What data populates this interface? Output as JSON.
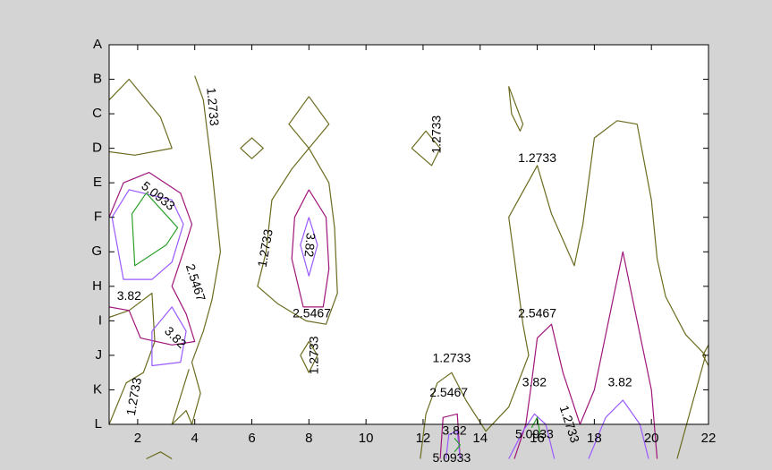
{
  "chart_data": {
    "type": "contour",
    "title": "",
    "xlabel": "",
    "ylabel": "",
    "xlim": [
      1,
      22
    ],
    "x_ticks": [
      2,
      4,
      6,
      8,
      10,
      12,
      14,
      16,
      18,
      20,
      22
    ],
    "y_categories": [
      "A",
      "B",
      "C",
      "D",
      "E",
      "F",
      "G",
      "H",
      "I",
      "J",
      "K",
      "L"
    ],
    "grid": false,
    "levels": [
      {
        "value": 1.2733,
        "color": "#6b6b1f"
      },
      {
        "value": 2.5467,
        "color": "#a0157a"
      },
      {
        "value": 3.82,
        "color": "#9b59ff"
      },
      {
        "value": 5.0933,
        "color": "#2ca02c"
      }
    ],
    "contours": [
      {
        "level": 0,
        "points": [
          [
            1,
            1.6
          ],
          [
            1.7,
            1.0
          ],
          [
            2.8,
            2.1
          ],
          [
            3.2,
            3.0
          ],
          [
            1.9,
            3.2
          ],
          [
            1,
            3.1
          ]
        ]
      },
      {
        "level": 0,
        "points": [
          [
            4.0,
            0.9
          ],
          [
            4.3,
            1.6
          ],
          [
            4.6,
            3.6
          ],
          [
            4.9,
            6.0
          ],
          [
            4.6,
            7.4
          ],
          [
            4.3,
            8.3
          ],
          [
            3.9,
            9.2
          ],
          [
            4.2,
            10.1
          ],
          [
            3.9,
            11.0
          ],
          [
            3.7,
            10.6
          ],
          [
            3.2,
            11.0
          ],
          [
            3.8,
            9.4
          ]
        ]
      },
      {
        "level": 0,
        "points": [
          [
            1,
            11.0
          ],
          [
            1.6,
            9.8
          ],
          [
            2.2,
            9.5
          ],
          [
            2.6,
            8.6
          ],
          [
            2.5,
            7.2
          ],
          [
            1.7,
            7.7
          ],
          [
            1,
            7.9
          ]
        ]
      },
      {
        "level": 0,
        "points": [
          [
            2.3,
            12
          ],
          [
            2.8,
            11.8
          ],
          [
            3.2,
            12
          ]
        ]
      },
      {
        "level": 0,
        "points": [
          [
            5.6,
            3.0
          ],
          [
            6.0,
            2.7
          ],
          [
            6.4,
            3.0
          ],
          [
            6.0,
            3.3
          ],
          [
            5.6,
            3.0
          ]
        ]
      },
      {
        "level": 0,
        "points": [
          [
            8,
            1.5
          ],
          [
            8.7,
            2.3
          ],
          [
            8,
            3.0
          ],
          [
            7.3,
            2.3
          ],
          [
            8,
            1.5
          ]
        ]
      },
      {
        "level": 0,
        "points": [
          [
            8,
            3.0
          ],
          [
            8.7,
            4.0
          ],
          [
            8.9,
            5.3
          ],
          [
            9.0,
            7.2
          ],
          [
            8.6,
            8.1
          ],
          [
            7.9,
            8.0
          ],
          [
            6.9,
            7.5
          ],
          [
            6.2,
            7.0
          ],
          [
            6.5,
            6.0
          ],
          [
            6.7,
            4.5
          ],
          [
            7.4,
            3.6
          ],
          [
            8,
            3.0
          ]
        ]
      },
      {
        "level": 0,
        "points": [
          [
            7.7,
            9.0
          ],
          [
            8,
            8.6
          ],
          [
            8.3,
            9.0
          ],
          [
            8,
            9.5
          ],
          [
            7.7,
            9.0
          ]
        ]
      },
      {
        "level": 0,
        "points": [
          [
            11.6,
            3.0
          ],
          [
            12.1,
            2.5
          ],
          [
            12.6,
            3.0
          ],
          [
            12.3,
            3.5
          ],
          [
            11.6,
            3.0
          ]
        ]
      },
      {
        "level": 0,
        "points": [
          [
            15.0,
            1.2
          ],
          [
            15.5,
            2.3
          ],
          [
            15.4,
            2.5
          ],
          [
            15.1,
            2.0
          ],
          [
            15.0,
            1.2
          ]
        ]
      },
      {
        "level": 0,
        "points": [
          [
            11.9,
            12
          ],
          [
            12.1,
            10.7
          ],
          [
            12.5,
            9.8
          ],
          [
            13.0,
            9.5
          ],
          [
            13.5,
            10.3
          ],
          [
            14.2,
            11.2
          ],
          [
            15.0,
            10.5
          ],
          [
            15.7,
            9.0
          ],
          [
            15.5,
            8.1
          ],
          [
            15.2,
            6.2
          ],
          [
            15.0,
            5.0
          ],
          [
            16.0,
            3.5
          ],
          [
            16.5,
            4.9
          ],
          [
            17.3,
            6.4
          ],
          [
            17.6,
            5.2
          ],
          [
            18.0,
            2.7
          ],
          [
            18.8,
            2.2
          ],
          [
            19.5,
            2.3
          ],
          [
            20.0,
            4.5
          ],
          [
            20.2,
            6.2
          ],
          [
            20.5,
            7.3
          ],
          [
            21.2,
            8.4
          ],
          [
            21.9,
            9.0
          ],
          [
            20.9,
            12
          ]
        ]
      },
      {
        "level": 0,
        "points": [
          [
            22,
            8.7
          ],
          [
            21.8,
            9.0
          ],
          [
            22,
            9.3
          ]
        ]
      },
      {
        "level": 1,
        "points": [
          [
            1,
            5.0
          ],
          [
            1.5,
            4.0
          ],
          [
            2.4,
            3.7
          ],
          [
            3.5,
            4.3
          ],
          [
            3.9,
            5.2
          ],
          [
            3.6,
            6.0
          ],
          [
            3.2,
            7.0
          ],
          [
            3.7,
            7.8
          ],
          [
            4.0,
            8.6
          ],
          [
            3.2,
            8.7
          ],
          [
            2.1,
            8.5
          ],
          [
            1.7,
            7.7
          ],
          [
            1,
            7.6
          ]
        ]
      },
      {
        "level": 1,
        "points": [
          [
            8,
            4.2
          ],
          [
            8.6,
            5.0
          ],
          [
            8.7,
            6.5
          ],
          [
            8.5,
            7.6
          ],
          [
            7.8,
            7.6
          ],
          [
            7.4,
            6.2
          ],
          [
            7.5,
            5.0
          ],
          [
            8,
            4.2
          ]
        ]
      },
      {
        "level": 1,
        "points": [
          [
            12.6,
            12
          ],
          [
            12.7,
            10.8
          ],
          [
            13.2,
            10.7
          ],
          [
            13.3,
            12
          ]
        ]
      },
      {
        "level": 1,
        "points": [
          [
            15.2,
            12
          ],
          [
            15.6,
            11.0
          ],
          [
            15.8,
            9.8
          ],
          [
            16.0,
            8.5
          ],
          [
            16.5,
            8.1
          ],
          [
            16.9,
            9.5
          ],
          [
            17.5,
            11.0
          ],
          [
            18.0,
            10.0
          ],
          [
            18.5,
            8.0
          ],
          [
            19.0,
            6.0
          ],
          [
            19.5,
            8.0
          ],
          [
            20.0,
            10.0
          ],
          [
            20.2,
            12
          ]
        ]
      },
      {
        "level": 2,
        "points": [
          [
            1.1,
            5.0
          ],
          [
            1.7,
            4.2
          ],
          [
            3.2,
            4.5
          ],
          [
            3.6,
            5.2
          ],
          [
            3.2,
            6.3
          ],
          [
            2.5,
            6.8
          ],
          [
            1.5,
            6.8
          ],
          [
            1.1,
            5.0
          ]
        ]
      },
      {
        "level": 2,
        "points": [
          [
            8,
            5.0
          ],
          [
            8.3,
            5.8
          ],
          [
            8.0,
            6.7
          ],
          [
            7.7,
            5.8
          ],
          [
            8,
            5.0
          ]
        ]
      },
      {
        "level": 2,
        "points": [
          [
            2.5,
            8.3
          ],
          [
            3.2,
            7.6
          ],
          [
            3.7,
            8.3
          ],
          [
            3.5,
            9.2
          ],
          [
            2.5,
            9.3
          ],
          [
            2.5,
            8.3
          ]
        ]
      },
      {
        "level": 2,
        "points": [
          [
            12.8,
            12
          ],
          [
            12.9,
            11.3
          ],
          [
            13.2,
            11.2
          ],
          [
            13.3,
            12
          ]
        ]
      },
      {
        "level": 2,
        "points": [
          [
            15.0,
            12
          ],
          [
            15.5,
            11.2
          ],
          [
            15.9,
            10.7
          ],
          [
            16.3,
            11.0
          ],
          [
            16.6,
            12
          ]
        ]
      },
      {
        "level": 2,
        "points": [
          [
            17.8,
            12
          ],
          [
            18.4,
            10.8
          ],
          [
            19.0,
            10.3
          ],
          [
            19.6,
            11.0
          ],
          [
            19.9,
            12
          ]
        ]
      },
      {
        "level": 3,
        "points": [
          [
            1.8,
            4.9
          ],
          [
            2.3,
            4.3
          ],
          [
            3.4,
            5.3
          ],
          [
            3.0,
            5.8
          ],
          [
            1.9,
            6.4
          ],
          [
            1.8,
            4.9
          ]
        ]
      },
      {
        "level": 3,
        "points": [
          [
            15.8,
            11.1
          ],
          [
            16.0,
            10.8
          ],
          [
            16.1,
            11.3
          ]
        ]
      },
      {
        "level": 3,
        "points": [
          [
            13.1,
            11.4
          ],
          [
            13.3,
            11.6
          ],
          [
            13.1,
            11.8
          ]
        ]
      }
    ],
    "annotations": [
      {
        "text": "1.2733",
        "x": 4.6,
        "y": 1.8,
        "angle": 85
      },
      {
        "text": "5.0933",
        "x": 2.7,
        "y": 4.4,
        "angle": 38
      },
      {
        "text": "2.5467",
        "x": 4.0,
        "y": 6.9,
        "angle": 72
      },
      {
        "text": "3.82",
        "x": 1.7,
        "y": 7.3,
        "angle": 0
      },
      {
        "text": "3.82",
        "x": 3.3,
        "y": 8.5,
        "angle": 45
      },
      {
        "text": "1.2733",
        "x": 1.9,
        "y": 10.2,
        "angle": -80
      },
      {
        "text": "1.2733",
        "x": 6.5,
        "y": 5.9,
        "angle": -80
      },
      {
        "text": "3.82",
        "x": 8.0,
        "y": 5.8,
        "angle": 95
      },
      {
        "text": "2.5467",
        "x": 8.1,
        "y": 7.8,
        "angle": 0
      },
      {
        "text": "1.2733",
        "x": 8.2,
        "y": 9.0,
        "angle": -90
      },
      {
        "text": "1.2733",
        "x": 12.5,
        "y": 2.6,
        "angle": -90
      },
      {
        "text": "1.2733",
        "x": 16.0,
        "y": 3.3,
        "angle": 0
      },
      {
        "text": "2.5467",
        "x": 16.0,
        "y": 7.8,
        "angle": 0
      },
      {
        "text": "1.2733",
        "x": 13.0,
        "y": 9.1,
        "angle": 0
      },
      {
        "text": "2.5467",
        "x": 12.9,
        "y": 10.1,
        "angle": 0
      },
      {
        "text": "3.82",
        "x": 15.9,
        "y": 9.8,
        "angle": 0
      },
      {
        "text": "3.82",
        "x": 18.9,
        "y": 9.8,
        "angle": 0
      },
      {
        "text": "3.82",
        "x": 13.1,
        "y": 11.2,
        "angle": 0
      },
      {
        "text": "5.0933",
        "x": 15.9,
        "y": 11.3,
        "angle": 0
      },
      {
        "text": "1.2733",
        "x": 17.1,
        "y": 11.0,
        "angle": 72
      },
      {
        "text": "5.0933",
        "x": 13.0,
        "y": 12.0,
        "angle": 0
      }
    ]
  }
}
